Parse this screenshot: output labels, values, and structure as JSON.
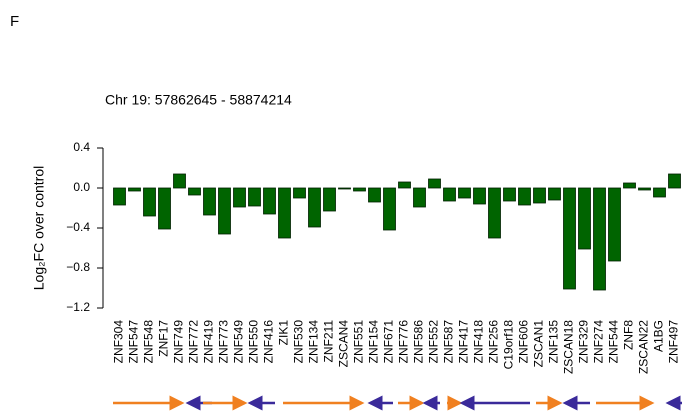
{
  "panel_label": "F",
  "chart_data": {
    "type": "bar",
    "title": "Chr 19: 57862645 - 58874214",
    "ylabel": "Log₂FC over control",
    "categories": [
      "ZNF304",
      "ZNF547",
      "ZNF548",
      "ZNF17",
      "ZNF749",
      "ZNF772",
      "ZNF419",
      "ZNF773",
      "ZNF549",
      "ZNF550",
      "ZNF416",
      "ZIK1",
      "ZNF530",
      "ZNF134",
      "ZNF211",
      "ZSCAN4",
      "ZNF551",
      "ZNF154",
      "ZNF671",
      "ZNF776",
      "ZNF586",
      "ZNF552",
      "ZNF587",
      "ZNF417",
      "ZNF418",
      "ZNF256",
      "C19orf18",
      "ZNF606",
      "ZSCAN1",
      "ZNF135",
      "ZSCAN18",
      "ZNF329",
      "ZNF274",
      "ZNF544",
      "ZNF8",
      "ZSCAN22",
      "A1BG",
      "ZNF497"
    ],
    "values": [
      -0.17,
      -0.03,
      -0.28,
      -0.41,
      0.14,
      -0.07,
      -0.27,
      -0.46,
      -0.19,
      -0.18,
      -0.26,
      -0.5,
      -0.1,
      -0.39,
      -0.23,
      -0.01,
      -0.03,
      -0.14,
      -0.42,
      0.06,
      -0.19,
      0.09,
      -0.13,
      -0.1,
      -0.16,
      -0.5,
      -0.13,
      -0.17,
      -0.15,
      -0.12,
      -1.01,
      -0.61,
      -1.02,
      -0.73,
      0.05,
      -0.02,
      -0.09,
      0.14
    ],
    "color": "#006400",
    "ylim": [
      -1.2,
      0.4
    ],
    "yticks": [
      0.4,
      {
        "value": 0,
        "label": "0.0"
      },
      {
        "value": -0.4,
        "label": "−0.4"
      },
      {
        "value": -0.8,
        "label": "−0.8"
      },
      {
        "value": -1.2,
        "label": "−1.2"
      }
    ]
  }
}
